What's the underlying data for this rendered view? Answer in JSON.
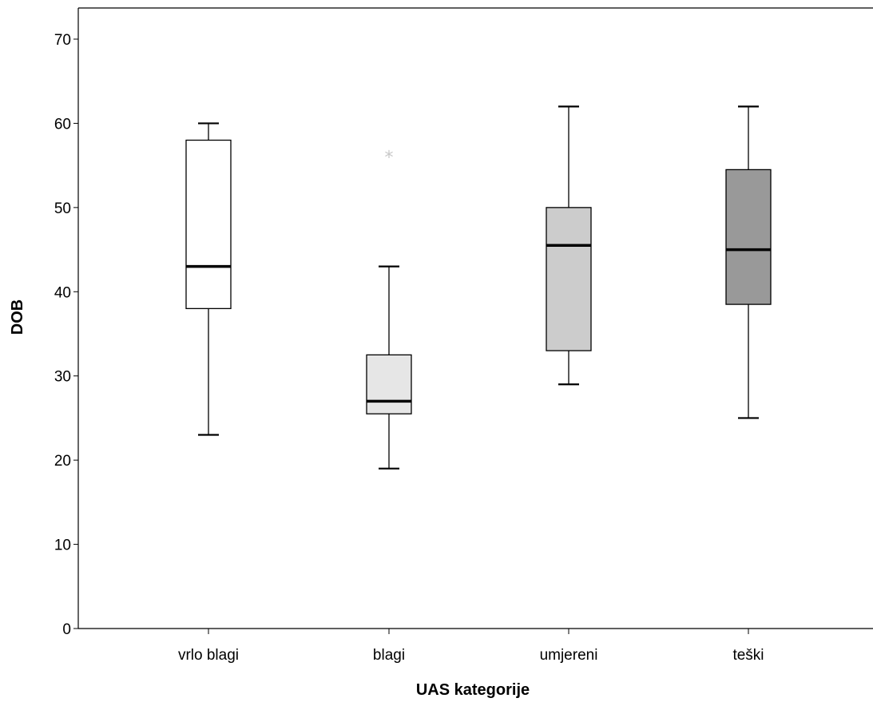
{
  "chart_data": {
    "type": "boxplot",
    "xlabel": "UAS kategorije",
    "ylabel": "DOB",
    "ylim": [
      0,
      70
    ],
    "yticks": [
      "0",
      "10",
      "20",
      "30",
      "40",
      "50",
      "60",
      "70"
    ],
    "grid": false,
    "categories": [
      "vrlo blagi",
      "blagi",
      "umjereni",
      "teški"
    ],
    "boxes": [
      {
        "category": "vrlo blagi",
        "min": 23,
        "q1": 38,
        "median": 43,
        "q3": 58,
        "max": 60,
        "outliers": [],
        "color": "#ffffff"
      },
      {
        "category": "blagi",
        "min": 19,
        "q1": 25.5,
        "median": 27,
        "q3": 32.5,
        "max": 43,
        "outliers": [
          56
        ],
        "color": "#e6e6e6"
      },
      {
        "category": "umjereni",
        "min": 29,
        "q1": 33,
        "median": 45.5,
        "q3": 50,
        "max": 62,
        "outliers": [],
        "color": "#cccccc"
      },
      {
        "category": "teški",
        "min": 25,
        "q1": 38.5,
        "median": 45,
        "q3": 54.5,
        "max": 62,
        "outliers": [],
        "color": "#999999"
      }
    ]
  }
}
